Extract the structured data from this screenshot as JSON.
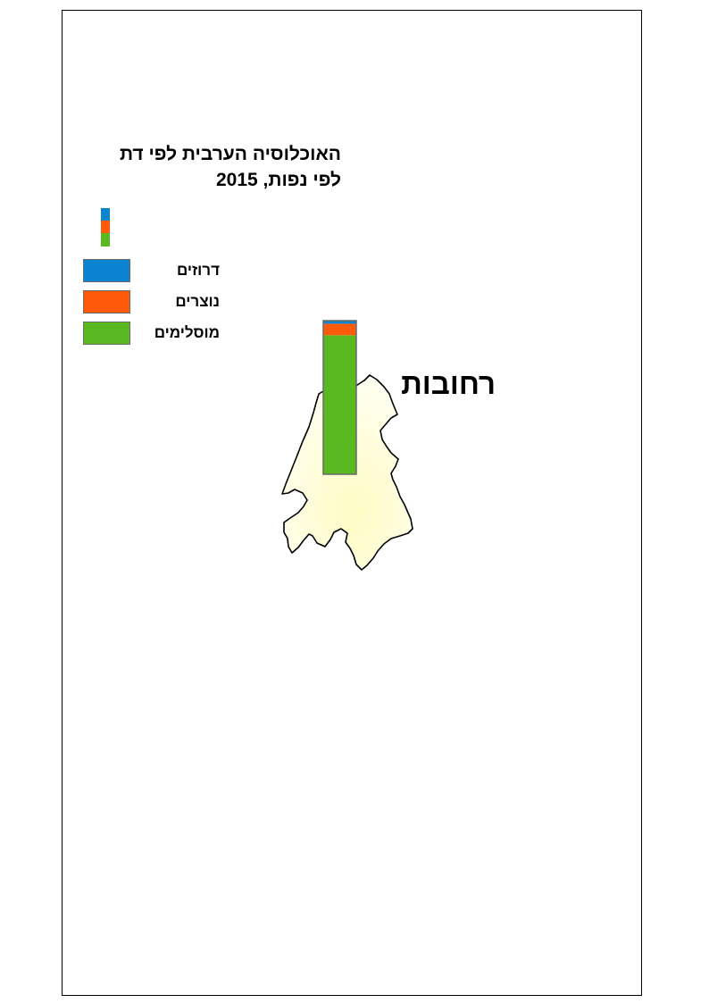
{
  "map": {
    "title_line1": "האוכלוסיה הערבית לפי דת",
    "title_line2": "לפי נפות, 2015",
    "city_label": "רחובות",
    "legend": [
      {
        "label": "דרוזים",
        "color": "#0a84d0"
      },
      {
        "label": "נוצרים",
        "color": "#ff5a0a"
      },
      {
        "label": "מוסלימים",
        "color": "#5ab921"
      }
    ]
  },
  "chart_data": {
    "type": "bar",
    "categories": [
      "רחובות"
    ],
    "series": [
      {
        "name": "מוסלימים",
        "values": [
          90.5
        ]
      },
      {
        "name": "נוצרים",
        "values": [
          7.5
        ]
      },
      {
        "name": "דרוזים",
        "values": [
          2.0
        ]
      }
    ],
    "title": "האוכלוסיה הערבית לפי דת לפי נפות, 2015"
  }
}
